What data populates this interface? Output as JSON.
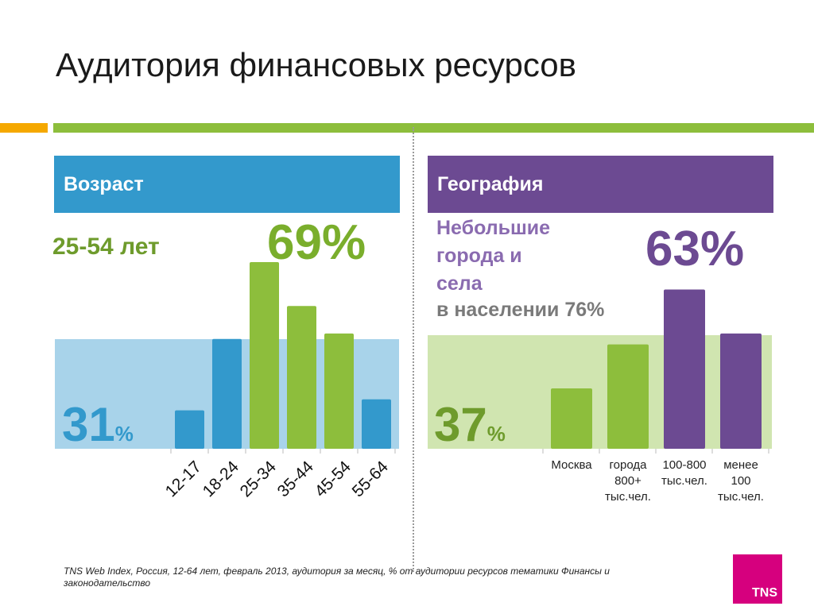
{
  "title": "Аудитория финансовых ресурсов",
  "age_panel": {
    "header": "Возраст",
    "group_label": "25-54 лет",
    "group_pct": "69%",
    "rest_value": "31",
    "rest_unit": "%"
  },
  "geo_panel": {
    "header": "География",
    "line1": "Небольшие",
    "line2": "города и",
    "line3": "села",
    "population_note": "в населении 76%",
    "group_pct": "63%",
    "rest_value": "37",
    "rest_unit": "%"
  },
  "colors": {
    "blue": "#3399cc",
    "green": "#8dbe3c",
    "purple": "#6c4a92",
    "orange": "#f5a800",
    "tns_pink": "#d6007e"
  },
  "chart_data": [
    {
      "type": "bar",
      "categories": [
        "12-17",
        "18-24",
        "25-34",
        "35-44",
        "45-54",
        "55-64"
      ],
      "values": [
        7,
        20,
        34,
        26,
        21,
        9
      ],
      "bar_colors": [
        "#3399cc",
        "#3399cc",
        "#8dbe3c",
        "#8dbe3c",
        "#8dbe3c",
        "#3399cc"
      ],
      "title": "",
      "xlabel": "",
      "ylabel": ""
    },
    {
      "type": "bar",
      "categories": [
        "Москва",
        "города 800+ тыс.чел.",
        "100-800 тыс.чел.",
        "менее 100 тыс.чел."
      ],
      "category_lines": [
        [
          "Москва"
        ],
        [
          "города",
          "800+",
          "тыс.чел."
        ],
        [
          "100-800",
          "тыс.чел."
        ],
        [
          "менее",
          "100",
          "тыс.чел."
        ]
      ],
      "values": [
        11,
        19,
        29,
        21
      ],
      "bar_colors": [
        "#8dbe3c",
        "#8dbe3c",
        "#6c4a92",
        "#6c4a92"
      ],
      "title": "",
      "xlabel": "",
      "ylabel": ""
    }
  ],
  "footer": "TNS Web Index, Россия, 12-64 лет, февраль 2013, аудитория за месяц, % от  аудитории ресурсов тематики Финансы и законодательство",
  "logo_text": "TNS"
}
